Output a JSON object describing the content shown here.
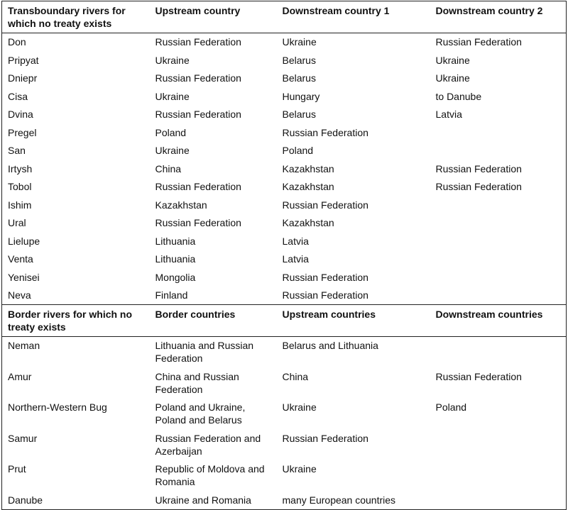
{
  "sections": [
    {
      "header": [
        "Transboundary rivers for which no treaty exists",
        "Upstream country",
        "Downstream country 1",
        "Downstream country 2"
      ],
      "rows": [
        [
          "Don",
          "Russian Federation",
          "Ukraine",
          "Russian Federation"
        ],
        [
          "Pripyat",
          "Ukraine",
          "Belarus",
          "Ukraine"
        ],
        [
          "Dniepr",
          "Russian Federation",
          "Belarus",
          "Ukraine"
        ],
        [
          "Cisa",
          "Ukraine",
          "Hungary",
          "to Danube"
        ],
        [
          "Dvina",
          "Russian Federation",
          "Belarus",
          "Latvia"
        ],
        [
          "Pregel",
          "Poland",
          "Russian Federation",
          null
        ],
        [
          "San",
          "Ukraine",
          "Poland",
          null
        ],
        [
          "Irtysh",
          "China",
          "Kazakhstan",
          "Russian Federation"
        ],
        [
          "Tobol",
          "Russian Federation",
          "Kazakhstan",
          "Russian Federation"
        ],
        [
          "Ishim",
          "Kazakhstan",
          "Russian Federation",
          null
        ],
        [
          "Ural",
          "Russian Federation",
          "Kazakhstan",
          null
        ],
        [
          "Lielupe",
          "Lithuania",
          "Latvia",
          null
        ],
        [
          "Venta",
          "Lithuania",
          "Latvia",
          null
        ],
        [
          "Yenisei",
          "Mongolia",
          "Russian Federation",
          null
        ],
        [
          "Neva",
          "Finland",
          "Russian Federation",
          null
        ]
      ]
    },
    {
      "header": [
        "Border rivers for which no treaty exists",
        "Border countries",
        "Upstream countries",
        "Downstream countries"
      ],
      "rows": [
        [
          "Neman",
          "Lithuania and Russian Federation",
          "Belarus and Lithuania",
          null
        ],
        [
          "Amur",
          "China and Russian Federation",
          "China",
          "Russian Federation"
        ],
        [
          "Northern-Western Bug",
          "Poland and Ukraine, Poland and Belarus",
          "Ukraine",
          "Poland"
        ],
        [
          "Samur",
          "Russian Federation and Azerbaijan",
          "Russian Federation",
          null
        ],
        [
          "Prut",
          "Republic of Moldova and Romania",
          "Ukraine",
          null
        ],
        [
          "Danube",
          "Ukraine and Romania",
          "many European countries",
          null
        ]
      ]
    }
  ]
}
